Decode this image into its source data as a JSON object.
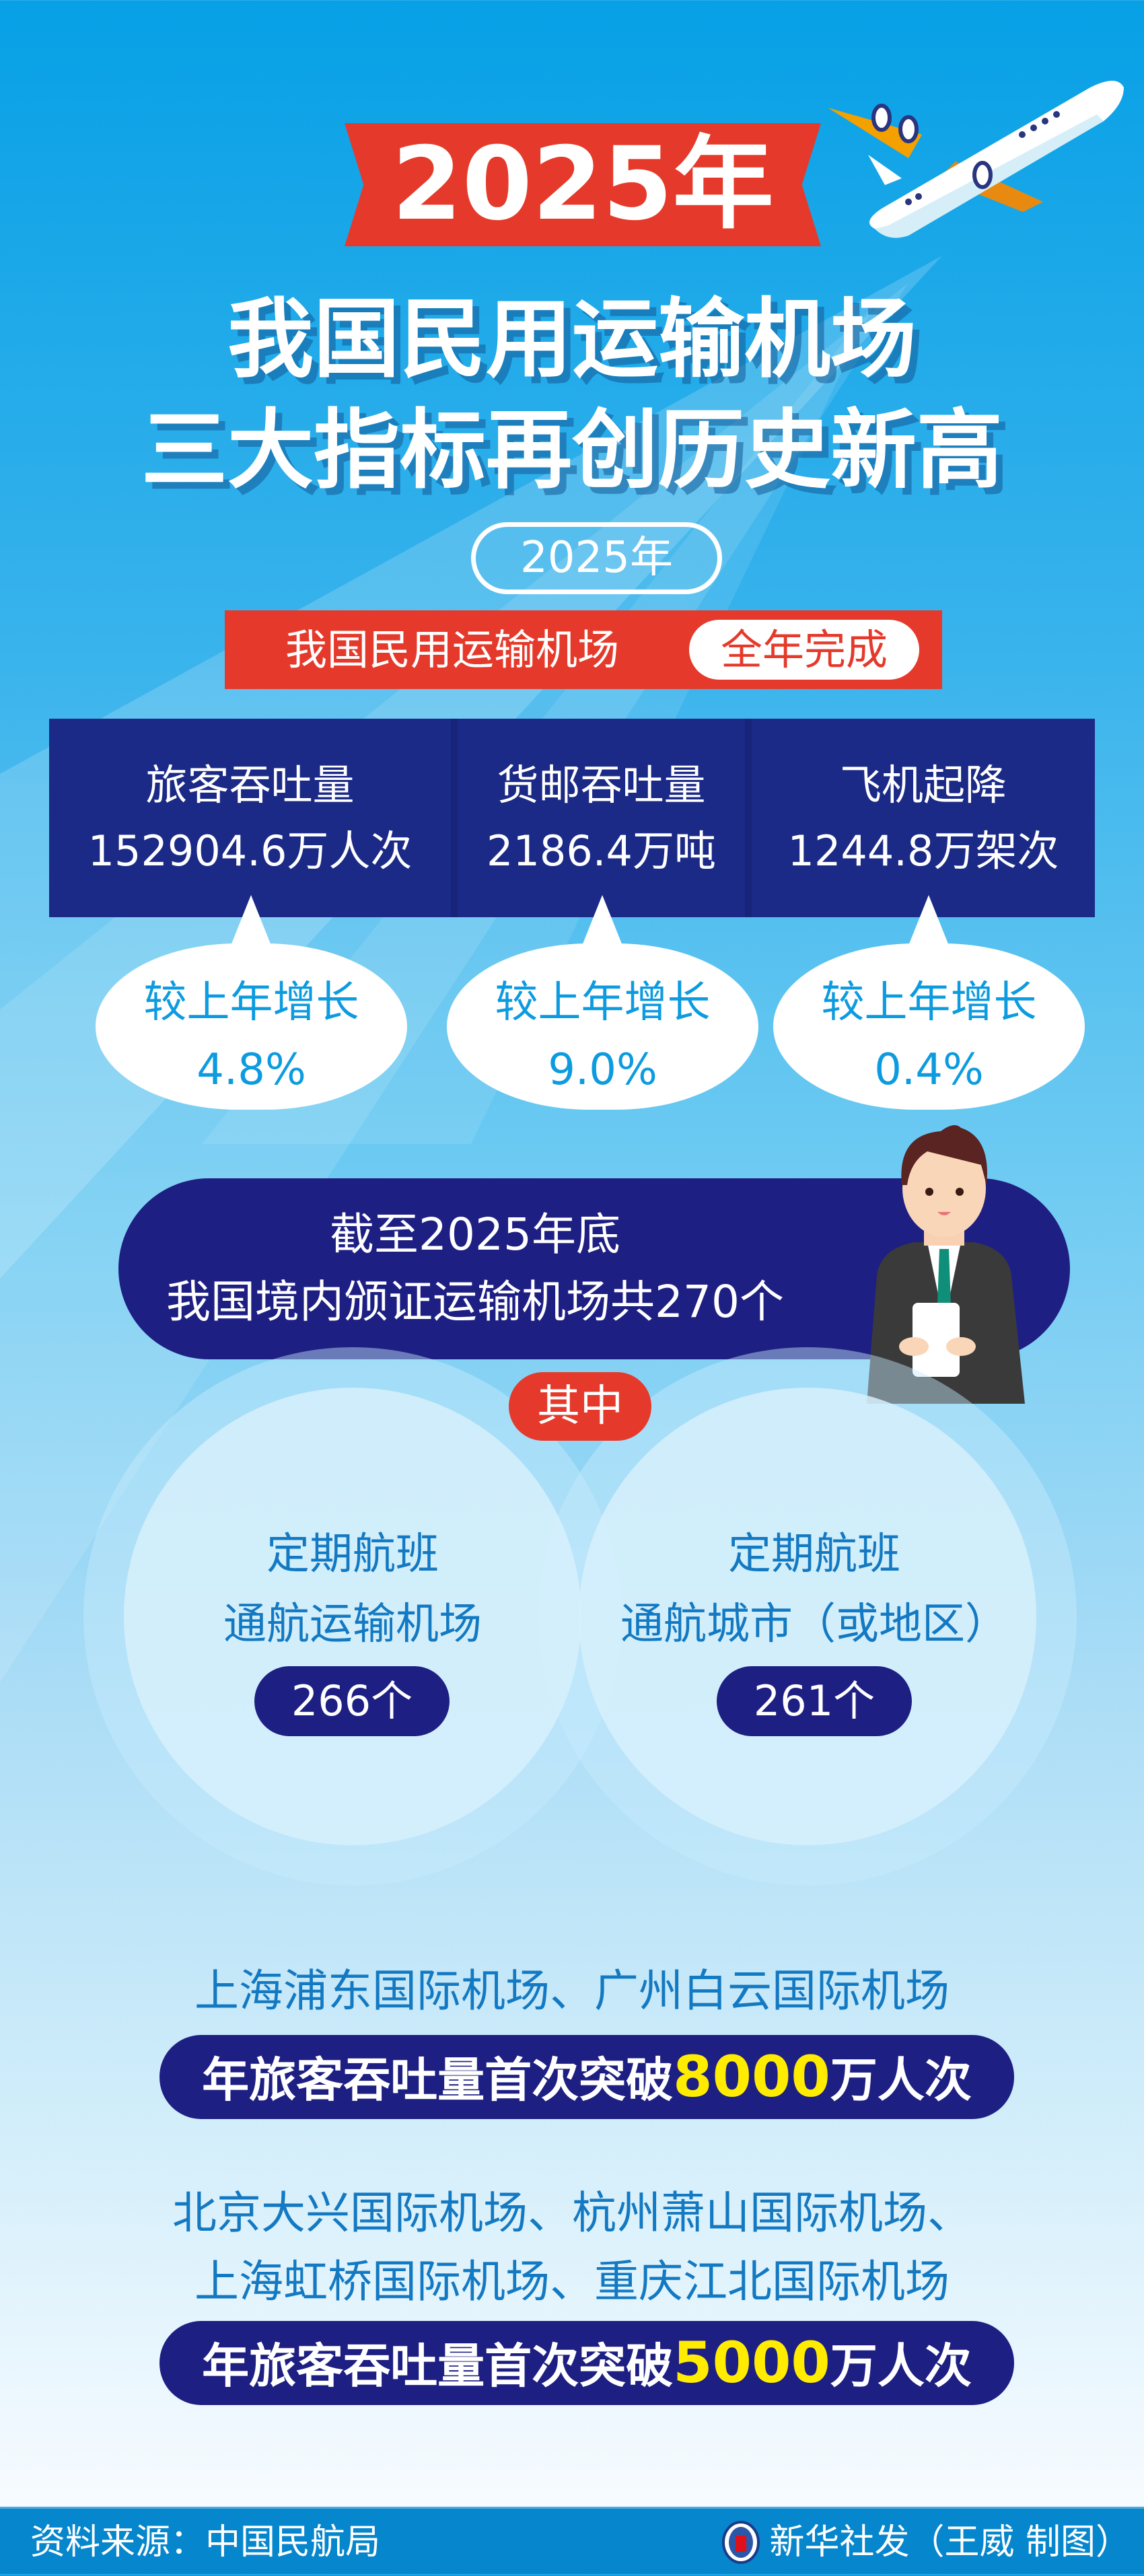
{
  "header": {
    "year_banner": "2025年",
    "title_line1": "我国民用运输机场",
    "title_line2": "三大指标再创历史新高"
  },
  "summary": {
    "year_pill": "2025年",
    "bar_label": "我国民用运输机场",
    "bar_badge": "全年完成"
  },
  "stats": [
    {
      "label": "旅客吞吐量",
      "value": "152904.6万人次",
      "growth_label": "较上年增长",
      "growth": "4.8%"
    },
    {
      "label": "货邮吞吐量",
      "value": "2186.4万吨",
      "growth_label": "较上年增长",
      "growth": "9.0%"
    },
    {
      "label": "飞机起降",
      "value": "1244.8万架次",
      "growth_label": "较上年增长",
      "growth": "0.4%"
    }
  ],
  "airports": {
    "line1": "截至2025年底",
    "line2": "我国境内颁证运输机场共270个",
    "among": "其中",
    "circles": [
      {
        "line1": "定期航班",
        "line2": "通航运输机场",
        "count": "266个"
      },
      {
        "line1": "定期航班",
        "line2": "通航城市（或地区）",
        "count": "261个"
      }
    ]
  },
  "milestones": [
    {
      "airports": [
        "上海浦东国际机场、广州白云国际机场"
      ],
      "prefix": "年旅客吞吐量首次突破",
      "number": "8000",
      "suffix": "万人次"
    },
    {
      "airports": [
        "北京大兴国际机场、杭州萧山国际机场、",
        "上海虹桥国际机场、重庆江北国际机场"
      ],
      "prefix": "年旅客吞吐量首次突破",
      "number": "5000",
      "suffix": "万人次"
    }
  ],
  "footer": {
    "source": "资料来源：中国民航局",
    "credit": "新华社发（王威 制图）",
    "logo_text": "新华社"
  },
  "colors": {
    "red": "#e53a2b",
    "navy": "#1e1f83",
    "sky": "#07a0e6",
    "highlight": "#ffec00",
    "text_blue": "#1379c2"
  }
}
